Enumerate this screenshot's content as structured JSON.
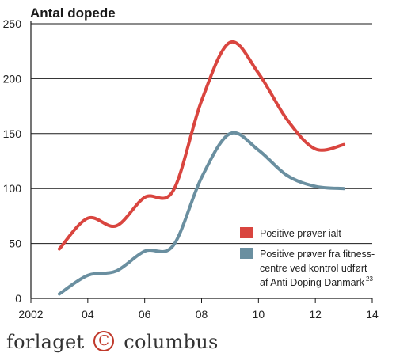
{
  "chart_data": {
    "type": "line",
    "title": "Antal dopede",
    "xlabel": "",
    "ylabel": "",
    "xlim": [
      2002,
      2014
    ],
    "ylim": [
      0,
      250
    ],
    "grid": true,
    "legend_position": "right",
    "x_ticks": [
      {
        "value": 2002,
        "label": "2002"
      },
      {
        "value": 2004,
        "label": "04"
      },
      {
        "value": 2006,
        "label": "06"
      },
      {
        "value": 2008,
        "label": "08"
      },
      {
        "value": 2010,
        "label": "10"
      },
      {
        "value": 2012,
        "label": "12"
      },
      {
        "value": 2014,
        "label": "14"
      }
    ],
    "y_ticks": [
      0,
      50,
      100,
      150,
      200,
      250
    ],
    "series": [
      {
        "name": "Positive prøver ialt",
        "color": "#d9453f",
        "points": [
          [
            2003,
            45
          ],
          [
            2004,
            73
          ],
          [
            2005,
            66
          ],
          [
            2006,
            92
          ],
          [
            2007,
            98
          ],
          [
            2008,
            180
          ],
          [
            2009,
            233
          ],
          [
            2010,
            205
          ],
          [
            2011,
            163
          ],
          [
            2012,
            136
          ],
          [
            2013,
            140
          ]
        ]
      },
      {
        "name": "Positive prøver fra fitness-centre ved kontrol udført af Anti Doping Danmark",
        "name_lines": [
          "Positive prøver fra fitness-",
          "centre ved kontrol udført",
          "af Anti Doping Danmark"
        ],
        "name_superscript": "23",
        "color": "#6a8fa0",
        "points": [
          [
            2003,
            4
          ],
          [
            2004,
            21
          ],
          [
            2005,
            25
          ],
          [
            2006,
            43
          ],
          [
            2007,
            48
          ],
          [
            2008,
            110
          ],
          [
            2009,
            150
          ],
          [
            2010,
            135
          ],
          [
            2011,
            112
          ],
          [
            2012,
            102
          ],
          [
            2013,
            100
          ]
        ]
      }
    ]
  },
  "publisher": {
    "name_left": "forlaget",
    "symbol": "C",
    "name_right": "columbus"
  }
}
